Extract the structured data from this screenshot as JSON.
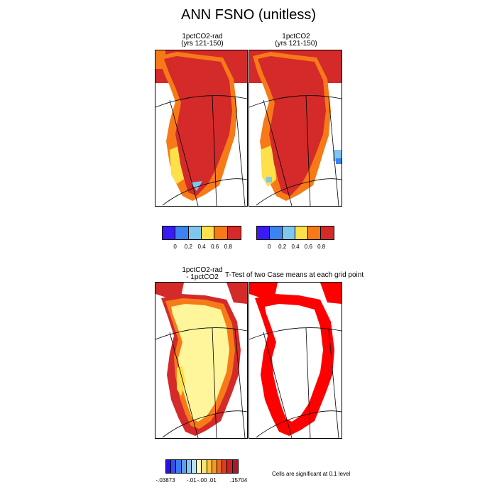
{
  "title": "ANN FSNO (unitless)",
  "panels": {
    "p1": {
      "title_line1": "1pctCO2-rad",
      "title_line2": "(yrs 121-150)"
    },
    "p2": {
      "title_line1": "1pctCO2",
      "title_line2": "(yrs 121-150)"
    },
    "p3": {
      "title_line1": "1pctCO2-rad",
      "title_line2": "- 1pctCO2"
    },
    "p4": {
      "title": "T-Test of two Case means at each grid point"
    }
  },
  "colorbar_top": {
    "colors": [
      "#3a1cf2",
      "#3a83f0",
      "#80c7ee",
      "#fde04a",
      "#f77a18",
      "#d42a2a"
    ],
    "tick_labels": [
      "0",
      "0.2",
      "0.4",
      "0.6",
      "0.8"
    ]
  },
  "colorbar_diff": {
    "colors": [
      "#2a10e8",
      "#2f4fee",
      "#3a7af0",
      "#5a9ef2",
      "#88c3f2",
      "#b7e2f5",
      "#fffac0",
      "#fde46a",
      "#fbc23a",
      "#f79a22",
      "#f06a1a",
      "#e03c1e",
      "#cf1f22",
      "#b0162a"
    ],
    "tick_labels": [
      "-.03873",
      "-.01",
      "-.00",
      ".01",
      ".15704"
    ]
  },
  "significance_note": "Cells are significant at 0.1 level",
  "colors": {
    "ice_high": "#d42a2a",
    "orange": "#f77a18",
    "yellow": "#fde04a",
    "light_yellow": "#fff59a",
    "light_blue": "#80c7ee",
    "significant": "#ff0000"
  }
}
